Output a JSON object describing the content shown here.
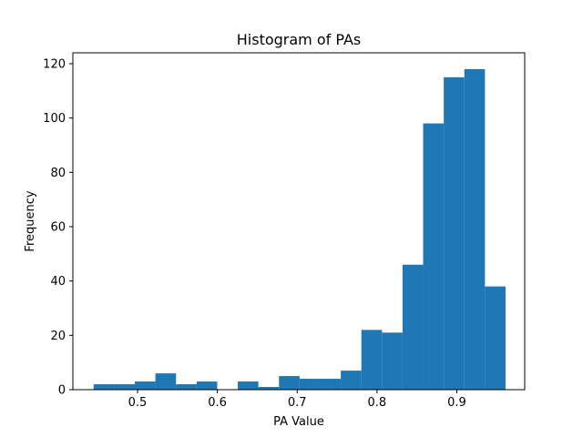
{
  "chart_data": {
    "type": "bar",
    "title": "Histogram of PAs",
    "xlabel": "PA Value",
    "ylabel": "Frequency",
    "bar_color": "#1f77b4",
    "xlim": [
      0.419,
      0.985
    ],
    "ylim": [
      0,
      124
    ],
    "xticks": [
      0.5,
      0.6,
      0.7,
      0.8,
      0.9
    ],
    "xtick_labels": [
      "0.5",
      "0.6",
      "0.7",
      "0.8",
      "0.9"
    ],
    "yticks": [
      0,
      20,
      40,
      60,
      80,
      100,
      120
    ],
    "ytick_labels": [
      "0",
      "20",
      "40",
      "60",
      "80",
      "100",
      "120"
    ],
    "grid": false,
    "bins": [
      {
        "x0": 0.445,
        "x1": 0.4708,
        "count": 2
      },
      {
        "x0": 0.4708,
        "x1": 0.4966,
        "count": 2
      },
      {
        "x0": 0.4966,
        "x1": 0.5224,
        "count": 3
      },
      {
        "x0": 0.5224,
        "x1": 0.5482,
        "count": 6
      },
      {
        "x0": 0.5482,
        "x1": 0.574,
        "count": 2
      },
      {
        "x0": 0.574,
        "x1": 0.5998,
        "count": 3
      },
      {
        "x0": 0.5998,
        "x1": 0.6256,
        "count": 0
      },
      {
        "x0": 0.6256,
        "x1": 0.6514,
        "count": 3
      },
      {
        "x0": 0.6514,
        "x1": 0.6772,
        "count": 1
      },
      {
        "x0": 0.6772,
        "x1": 0.703,
        "count": 5
      },
      {
        "x0": 0.703,
        "x1": 0.7288,
        "count": 4
      },
      {
        "x0": 0.7288,
        "x1": 0.7546,
        "count": 4
      },
      {
        "x0": 0.7546,
        "x1": 0.7804,
        "count": 7
      },
      {
        "x0": 0.7804,
        "x1": 0.8062,
        "count": 22
      },
      {
        "x0": 0.8062,
        "x1": 0.832,
        "count": 21
      },
      {
        "x0": 0.832,
        "x1": 0.8578,
        "count": 46
      },
      {
        "x0": 0.8578,
        "x1": 0.8836,
        "count": 98
      },
      {
        "x0": 0.8836,
        "x1": 0.9094,
        "count": 115
      },
      {
        "x0": 0.9094,
        "x1": 0.9352,
        "count": 118
      },
      {
        "x0": 0.9352,
        "x1": 0.961,
        "count": 38
      }
    ]
  }
}
